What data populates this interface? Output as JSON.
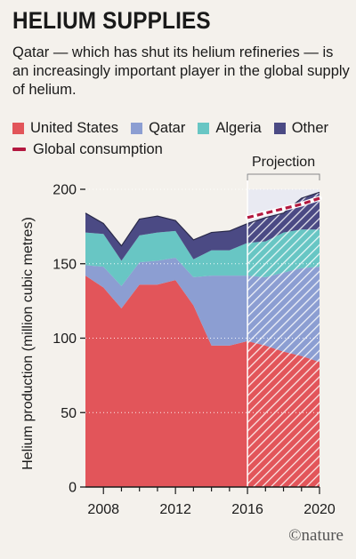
{
  "header": {
    "title": "HELIUM SUPPLIES",
    "subtitle": "Qatar — which has shut its helium refineries — is an increasingly important player in the global supply of helium."
  },
  "footer": {
    "logo_text": "©nature"
  },
  "colors": {
    "united_states": "#e2555a",
    "qatar": "#8c9ed2",
    "algeria": "#68c6c4",
    "other": "#4b4a84",
    "global_consumption": "#b3183f",
    "background": "#f4f1ec",
    "projection_band": "#e9eaf2"
  },
  "chart_data": {
    "type": "area",
    "title": "HELIUM SUPPLIES",
    "ylabel": "Helium production (million cubic metres)",
    "xlabel": "",
    "ylim": [
      0,
      200
    ],
    "xlim": [
      2007,
      2020
    ],
    "yticks": [
      "0",
      "50",
      "100",
      "150",
      "200"
    ],
    "xticks": [
      "2008",
      "2012",
      "2016",
      "2020"
    ],
    "stacked": true,
    "projection_start": 2016,
    "projection_label": "Projection",
    "x": [
      2007,
      2008,
      2009,
      2010,
      2011,
      2012,
      2013,
      2014,
      2015,
      2016,
      2017,
      2018,
      2019,
      2020
    ],
    "series": [
      {
        "name": "United States",
        "key": "united_states",
        "values": [
          142,
          134,
          120,
          136,
          136,
          139,
          122,
          95,
          95,
          98,
          95,
          91,
          88,
          84
        ]
      },
      {
        "name": "Qatar",
        "key": "qatar",
        "values": [
          7,
          14,
          15,
          15,
          16,
          15,
          19,
          47,
          47,
          44,
          46,
          53,
          59,
          64
        ]
      },
      {
        "name": "Algeria",
        "key": "algeria",
        "values": [
          22,
          22,
          17,
          18,
          19,
          18,
          12,
          17,
          17,
          22,
          24,
          27,
          26,
          25
        ]
      },
      {
        "name": "Other",
        "key": "other",
        "values": [
          13,
          7,
          10,
          11,
          11,
          7,
          13,
          12,
          13,
          13,
          16,
          13,
          21,
          25
        ]
      }
    ],
    "line_series": {
      "name": "Global consumption",
      "x": [
        2016,
        2017,
        2018,
        2019,
        2020
      ],
      "values": [
        181,
        184,
        187,
        190,
        194
      ]
    },
    "legend_position": "top-left"
  }
}
